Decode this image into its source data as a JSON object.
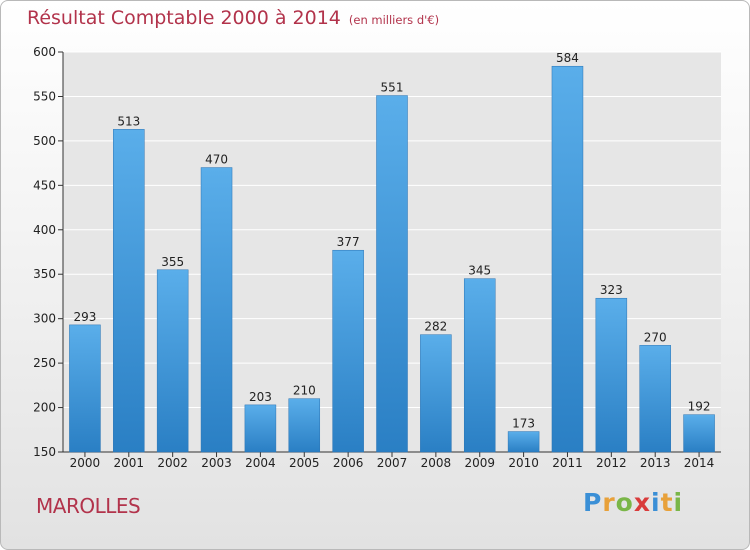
{
  "header": {
    "title": "Résultat Comptable 2000 à 2014",
    "unit": "(en milliers d'€)"
  },
  "footer": {
    "commune": "MAROLLES",
    "logo": "Proxiti",
    "logo_letters": [
      "P",
      "r",
      "o",
      "x",
      "i",
      "t",
      "i"
    ]
  },
  "colors": {
    "title": "#b2334b",
    "bar_top": "#5aaeea",
    "bar_bottom": "#2a7fc4",
    "plot_bg": "#e6e6e6",
    "grid": "#ffffff"
  },
  "chart_data": {
    "type": "bar",
    "title": "Résultat Comptable 2000 à 2014",
    "subtitle": "(en milliers d'€)",
    "categories": [
      "2000",
      "2001",
      "2002",
      "2003",
      "2004",
      "2005",
      "2006",
      "2007",
      "2008",
      "2009",
      "2010",
      "2011",
      "2012",
      "2013",
      "2014"
    ],
    "values": [
      293,
      513,
      355,
      470,
      203,
      210,
      377,
      551,
      282,
      345,
      173,
      584,
      323,
      270,
      192
    ],
    "ylim": [
      150,
      600
    ],
    "yticks": [
      150,
      200,
      250,
      300,
      350,
      400,
      450,
      500,
      550,
      600
    ],
    "xlabel": "",
    "ylabel": "",
    "grid": true,
    "data_labels": true
  }
}
